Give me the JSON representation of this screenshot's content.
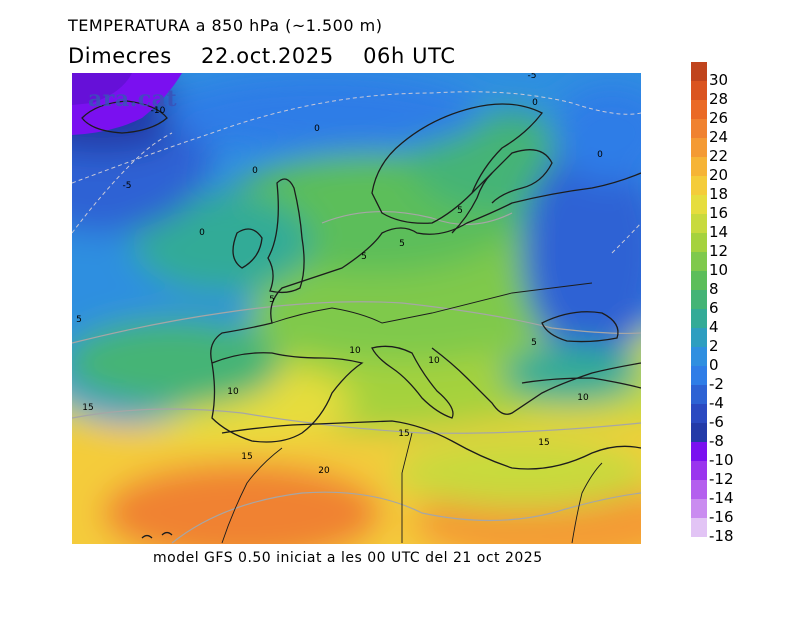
{
  "title": "TEMPERATURA a 850 hPa (~1.500 m)",
  "subtitle": {
    "day": "Dimecres",
    "date": "22.oct.2025",
    "time": "06h UTC"
  },
  "footer": "model GFS 0.50 iniciat a les 00 UTC del 21 oct 2025",
  "watermark": "ara.cat",
  "colorbar": {
    "labels": [
      "30",
      "28",
      "26",
      "24",
      "22",
      "20",
      "18",
      "16",
      "14",
      "12",
      "10",
      "8",
      "6",
      "4",
      "2",
      "0",
      "-2",
      "-4",
      "-6",
      "-8",
      "-10",
      "-12",
      "-14",
      "-16",
      "-18"
    ],
    "colors": [
      "#c0441d",
      "#da5420",
      "#ea6a26",
      "#f08230",
      "#f49a34",
      "#f6b436",
      "#f4cc3a",
      "#e6dd3e",
      "#c8da3e",
      "#a5d23e",
      "#7fc94c",
      "#5cbe5a",
      "#44b476",
      "#33ab97",
      "#2e9ec0",
      "#2f8fe0",
      "#2f7de7",
      "#2d62d4",
      "#2a49c1",
      "#233aa8",
      "#7a10f0",
      "#9a35ee",
      "#b45fee",
      "#ca8cf0",
      "#e2c4f5"
    ]
  },
  "contour_labels": [
    {
      "text": "-10"
    },
    {
      "text": "-5"
    },
    {
      "text": "-5"
    },
    {
      "text": "0"
    },
    {
      "text": "0"
    },
    {
      "text": "0"
    },
    {
      "text": "0"
    },
    {
      "text": "0"
    },
    {
      "text": "5"
    },
    {
      "text": "5"
    },
    {
      "text": "5"
    },
    {
      "text": "5"
    },
    {
      "text": "5"
    },
    {
      "text": "5"
    },
    {
      "text": "10"
    },
    {
      "text": "10"
    },
    {
      "text": "10"
    },
    {
      "text": "10"
    },
    {
      "text": "15"
    },
    {
      "text": "15"
    },
    {
      "text": "15"
    },
    {
      "text": "15"
    },
    {
      "text": "20"
    }
  ]
}
